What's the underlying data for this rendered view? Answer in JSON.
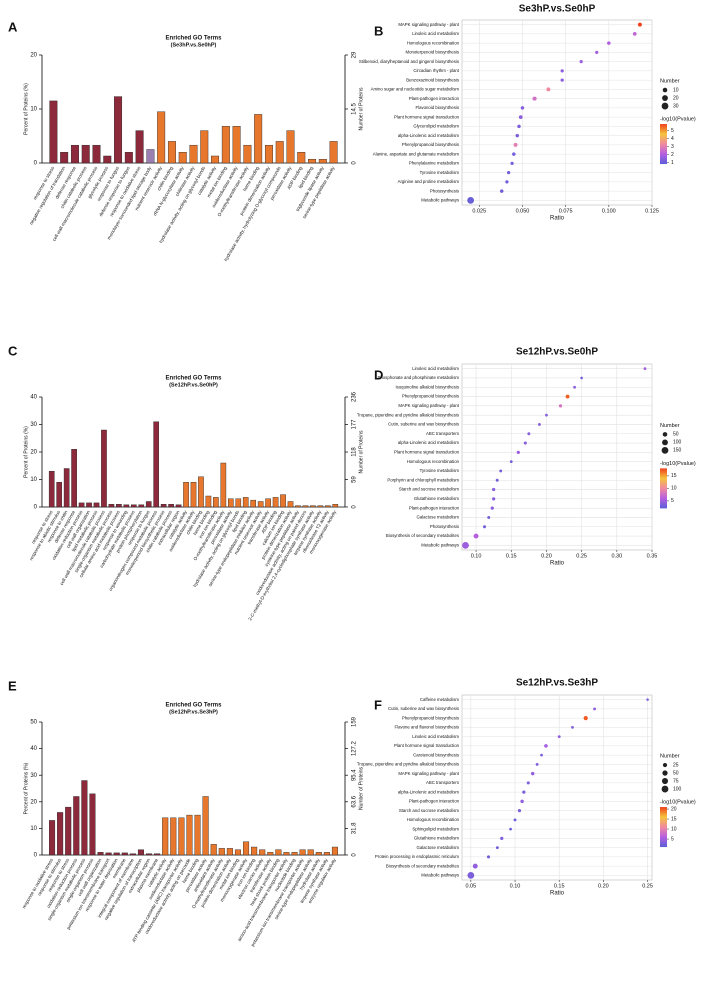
{
  "chart_data": [
    {
      "type": "bar",
      "panel": "A",
      "title": "Enriched GO Terms",
      "subtitle": "(Se3hP.vs.Se0hP)",
      "ylabel": "Percent of Proteins (%)",
      "y2label": "Number of Proteins",
      "categories": [
        "response to stress",
        "negative regulation of translation",
        "defense response",
        "chitin catabolic process",
        "cell wall macromolecule catabolic process",
        "glycolytic process",
        "response to fungus",
        "defense response to fungus",
        "response to oxidative stress",
        "monolayer-surrounded lipid storage body",
        "nutrient reservoir activity",
        "chitin binding",
        "rRNA N-glycosylase activity",
        "chitinase activity",
        "hydrolase activity, acting on glycosyl bonds",
        "catalytic activity",
        "metal ion binding",
        "oxidoreductase activity",
        "O-methyltransferase activity",
        "heme binding",
        "protein dimerization activity",
        "hydrolase activity, hydrolyzing O-glycosyl compounds",
        "peroxidase activity",
        "ADP binding",
        "lipid binding",
        "triglyceride lipase activity",
        "serine-type peptidase activity"
      ],
      "values": [
        11.5,
        2,
        3.3,
        3.3,
        3.3,
        1.3,
        12.3,
        2,
        6,
        2.5,
        9.5,
        4,
        2,
        3.3,
        6,
        1.3,
        6.8,
        6.8,
        3.3,
        9,
        3.3,
        4,
        6,
        2,
        0.7,
        0.7,
        4
      ],
      "colors": [
        "#8c2a3c",
        "#8c2a3c",
        "#8c2a3c",
        "#8c2a3c",
        "#8c2a3c",
        "#8c2a3c",
        "#8c2a3c",
        "#8c2a3c",
        "#8c2a3c",
        "#9b7fb3",
        "#e8772e",
        "#e8772e",
        "#e8772e",
        "#e8772e",
        "#e8772e",
        "#e8772e",
        "#e8772e",
        "#e8772e",
        "#e8772e",
        "#e8772e",
        "#e8772e",
        "#e8772e",
        "#e8772e",
        "#e8772e",
        "#e8772e",
        "#e8772e",
        "#e8772e"
      ],
      "ylim": [
        0,
        20
      ],
      "yticks": [
        0,
        10,
        20
      ],
      "y2lim": [
        0,
        29
      ],
      "y2ticks": [
        0,
        14.5,
        29
      ]
    },
    {
      "type": "dot",
      "panel": "B",
      "title": "Se3hP.vs.Se0hP",
      "xlabel": "Ratio",
      "size_title": "Number",
      "color_title": "-log10(Pvalue)",
      "categories": [
        "MAPK signaling pathway - plant",
        "Linoleic acid metabolism",
        "Homologous recombination",
        "Monoterpenoid biosynthesis",
        "Stilbenoid, diarylheptanoid and gingerol biosynthesis",
        "Circadian rhythm - plant",
        "Benzoxazinoid biosynthesis",
        "Amino sugar and nucleotide sugar metabolism",
        "Plant-pathogen interaction",
        "Flavonoid biosynthesis",
        "Plant hormone signal transduction",
        "Glycerolipid metabolism",
        "alpha-Linolenic acid metabolism",
        "Phenylpropanoid biosynthesis",
        "Alanine, aspartate and glutamate metabolism",
        "Phenylalanine metabolism",
        "Tyrosine metabolism",
        "Arginine and proline metabolism",
        "Photosynthesis",
        "Metabolic pathways"
      ],
      "values": [
        0.118,
        0.115,
        0.1,
        0.093,
        0.084,
        0.073,
        0.073,
        0.065,
        0.057,
        0.05,
        0.049,
        0.048,
        0.047,
        0.046,
        0.045,
        0.044,
        0.042,
        0.041,
        0.038,
        0.02
      ],
      "sizes": [
        6,
        5,
        4,
        3,
        3,
        3,
        3,
        6,
        7,
        4,
        5,
        4,
        4,
        6,
        4,
        3,
        3,
        3,
        4,
        30
      ],
      "pvalues": [
        5.8,
        2.3,
        2,
        1.8,
        1.7,
        1.5,
        1.5,
        3.3,
        2.6,
        1.4,
        1.5,
        1.3,
        1.3,
        3,
        1.2,
        1.2,
        1.1,
        1.1,
        1.1,
        1
      ],
      "xlim": [
        0.015,
        0.125
      ],
      "xticks": [
        {
          "value": 0.025,
          "label": "0.025"
        },
        {
          "value": 0.05,
          "label": "0.050"
        },
        {
          "value": 0.075,
          "label": "0.075"
        },
        {
          "value": 0.1,
          "label": "0.100"
        },
        {
          "value": 0.125,
          "label": "0.125"
        }
      ],
      "size_ticks": [
        10,
        20,
        30
      ],
      "clim": [
        0.8,
        5.8
      ],
      "cticks": [
        1,
        2,
        3,
        4,
        5
      ],
      "colorscale": [
        "#5a5fd8",
        "#b55fe0",
        "#f08aa0",
        "#f5c43c",
        "#f0401c"
      ]
    },
    {
      "type": "bar",
      "panel": "C",
      "title": "Enriched GO Terms",
      "subtitle": "(Se12hP.vs.Se0hP)",
      "ylabel": "Percent of Proteins (%)",
      "y2label": "Number of Proteins",
      "categories": [
        "response to stress",
        "response to abiotic stimulus",
        "response to chitin",
        "defense response",
        "oxidation-reduction process",
        "cell wall organization",
        "lipid metabolic process",
        "cell wall macromolecule catabolic process",
        "single-organism metabolic process",
        "cellular amino acid metabolic process",
        "response to wounding",
        "carbohydrate metabolic process",
        "protein phosphorylation",
        "response to fungus",
        "organonitrogen compound metabolic process",
        "monoterpenoid biosynthetic process",
        "chitin catabolic process",
        "extracellular region",
        "catalytic activity",
        "oxidoreductase activity",
        "chitin binding",
        "heme binding",
        "iron ion binding",
        "O-methyltransferase activity",
        "peroxidase activity",
        "hydrolase activity, acting on glycosyl bonds",
        "lipid binding",
        "serine-type endopeptidase inhibitor activity",
        "nutrient reservoir activity",
        "transferase activity",
        "ADP binding",
        "calcium ion binding",
        "protein dimerization activity",
        "cysteine-type peptidase activity",
        "oxidoreductase activity, acting on paired donors",
        "2-C-methyl-D-erythritol 2,4-cyclodiphosphate synthase activity",
        "terpene synthase activity",
        "ribonuclease T2 activity",
        "monooxygenase activity"
      ],
      "values": [
        13,
        9,
        14,
        21,
        1.5,
        1.5,
        1.5,
        28,
        1,
        1,
        0.8,
        0.8,
        0.8,
        2,
        31,
        1,
        1,
        0.8,
        9,
        9,
        11,
        4,
        3.5,
        16,
        3,
        3,
        3.5,
        2.5,
        2,
        3,
        3.5,
        4.5,
        2,
        0.5,
        0.5,
        0.5,
        0.5,
        0.5,
        1
      ],
      "colors": [
        "#8c2a3c",
        "#8c2a3c",
        "#8c2a3c",
        "#8c2a3c",
        "#8c2a3c",
        "#8c2a3c",
        "#8c2a3c",
        "#8c2a3c",
        "#8c2a3c",
        "#8c2a3c",
        "#8c2a3c",
        "#8c2a3c",
        "#8c2a3c",
        "#8c2a3c",
        "#8c2a3c",
        "#8c2a3c",
        "#8c2a3c",
        "#8c2a3c",
        "#e8772e",
        "#e8772e",
        "#e8772e",
        "#e8772e",
        "#e8772e",
        "#e8772e",
        "#e8772e",
        "#e8772e",
        "#e8772e",
        "#e8772e",
        "#e8772e",
        "#e8772e",
        "#e8772e",
        "#e8772e",
        "#e8772e",
        "#e8772e",
        "#e8772e",
        "#e8772e",
        "#e8772e",
        "#e8772e",
        "#e8772e"
      ],
      "ylim": [
        0,
        40
      ],
      "yticks": [
        0,
        10,
        20,
        30,
        40
      ],
      "y2lim": [
        0,
        236
      ],
      "y2ticks": [
        0,
        59,
        118,
        177,
        236
      ]
    },
    {
      "type": "dot",
      "panel": "D",
      "title": "Se12hP.vs.Se0hP",
      "xlabel": "Ratio",
      "size_title": "Number",
      "color_title": "-log10(Pvalue)",
      "categories": [
        "Linoleic acid metabolism",
        "Phosphonate and phosphinate metabolism",
        "Isoquinoline alkaloid biosynthesis",
        "Phenylpropanoid biosynthesis",
        "MAPK signaling pathway - plant",
        "Tropane, piperidine and pyridine alkaloid biosynthesis",
        "Cutin, suberine and wax biosynthesis",
        "ABC transporters",
        "alpha-Linolenic acid metabolism",
        "Plant hormone signal transduction",
        "Homologous recombination",
        "Tyrosine metabolism",
        "Porphyrin and chlorophyll metabolism",
        "Starch and sucrose metabolism",
        "Glutathione metabolism",
        "Plant-pathogen interaction",
        "Galactose metabolism",
        "Photosynthesis",
        "Biosynthesis of secondary metabolites",
        "Metabolic pathways"
      ],
      "values": [
        0.34,
        0.25,
        0.24,
        0.23,
        0.22,
        0.2,
        0.19,
        0.175,
        0.17,
        0.16,
        0.15,
        0.135,
        0.13,
        0.125,
        0.125,
        0.123,
        0.118,
        0.112,
        0.1,
        0.085
      ],
      "sizes": [
        8,
        5,
        8,
        30,
        15,
        8,
        8,
        10,
        12,
        15,
        8,
        8,
        10,
        15,
        15,
        15,
        10,
        12,
        60,
        150
      ],
      "pvalues": [
        5,
        3,
        4,
        17,
        8,
        4,
        4,
        4,
        4,
        5,
        3,
        3,
        3,
        4,
        4,
        4,
        3,
        3,
        6,
        5
      ],
      "xlim": [
        0.08,
        0.35
      ],
      "xticks": [
        {
          "value": 0.1,
          "label": "0.10"
        },
        {
          "value": 0.15,
          "label": "0.15"
        },
        {
          "value": 0.2,
          "label": "0.20"
        },
        {
          "value": 0.25,
          "label": "0.25"
        },
        {
          "value": 0.3,
          "label": "0.30"
        },
        {
          "value": 0.35,
          "label": "0.35"
        }
      ],
      "size_ticks": [
        50,
        100,
        150
      ],
      "clim": [
        2,
        18
      ],
      "cticks": [
        5,
        10,
        15
      ],
      "colorscale": [
        "#5a5fd8",
        "#b55fe0",
        "#f08aa0",
        "#f5c43c",
        "#f0401c"
      ]
    },
    {
      "type": "bar",
      "panel": "E",
      "title": "Enriched GO Terms",
      "subtitle": "(Se12hP.vs.Se3hP)",
      "ylabel": "Percent of Proteins (%)",
      "y2label": "Number of Proteins",
      "categories": [
        "response to oxidative stress",
        "response to stimulus",
        "response to stress",
        "oxidation-reduction process",
        "single-organism metabolic process",
        "single-organism process",
        "cell wall organization",
        "potassium ion transmembrane transport",
        "response to water deprivation",
        "membrane",
        "integral component of membrane",
        "negative regulation of transcription",
        "extracellular region",
        "plasma membrane",
        "catalytic activity",
        "oxidoreductase activity",
        "ATP-binding cassette (ABC) transporter activity",
        "oxidoreductase activity, acting on peroxide",
        "heme binding",
        "peroxidase activity",
        "antioxidant activity",
        "O-methyltransferase activity",
        "protein dimerization activity",
        "metal ion binding",
        "monooxygenase activity",
        "iron ion binding",
        "electron carrier activity",
        "transferase activity",
        "heat shock protein binding",
        "amino-acid transmembrane transporter activity",
        "nucleotide binding",
        "potassium ion transmembrane transporter activity",
        "serine-type endopeptidase activity",
        "hydrolase activity",
        "terpene synthase activity",
        "enzyme regulator activity"
      ],
      "values": [
        13,
        16,
        18,
        22,
        28,
        23,
        1,
        0.8,
        0.8,
        0.8,
        0.5,
        2,
        0.5,
        0.5,
        14,
        14,
        14,
        15,
        15,
        22,
        4,
        2.5,
        2.5,
        2,
        5,
        3,
        2,
        1,
        2,
        1,
        1,
        2,
        2,
        1,
        1,
        3
      ],
      "colors": [
        "#8c2a3c",
        "#8c2a3c",
        "#8c2a3c",
        "#8c2a3c",
        "#8c2a3c",
        "#8c2a3c",
        "#8c2a3c",
        "#8c2a3c",
        "#8c2a3c",
        "#8c2a3c",
        "#8c2a3c",
        "#8c2a3c",
        "#8c2a3c",
        "#8c2a3c",
        "#e8772e",
        "#e8772e",
        "#e8772e",
        "#e8772e",
        "#e8772e",
        "#e8772e",
        "#e8772e",
        "#e8772e",
        "#e8772e",
        "#e8772e",
        "#e8772e",
        "#e8772e",
        "#e8772e",
        "#e8772e",
        "#e8772e",
        "#e8772e",
        "#e8772e",
        "#e8772e",
        "#e8772e",
        "#e8772e",
        "#e8772e",
        "#e8772e"
      ],
      "ylim": [
        0,
        50
      ],
      "yticks": [
        0,
        10,
        20,
        30,
        40,
        50
      ],
      "y2lim": [
        0,
        159
      ],
      "y2ticks": [
        0,
        31.8,
        63.6,
        95.4,
        127.2,
        159
      ]
    },
    {
      "type": "dot",
      "panel": "F",
      "title": "Se12hP.vs.Se3hP",
      "xlabel": "Ratio",
      "size_title": "Number",
      "color_title": "-log10(Pvalue)",
      "categories": [
        "Caffeine metabolism",
        "Cutin, suberine and wax biosynthesis",
        "Phenylpropanoid biosynthesis",
        "Flavone and flavonol biosynthesis",
        "Linoleic acid metabolism",
        "Plant hormone signal transduction",
        "Carotenoid biosynthesis",
        "Tropane, piperidine and pyridine alkaloid biosynthesis",
        "MAPK signaling pathway - plant",
        "ABC transporters",
        "alpha-Linolenic acid metabolism",
        "Plant-pathogen interaction",
        "Starch and sucrose metabolism",
        "Homologous recombination",
        "Sphingolipid metabolism",
        "Glutathione metabolism",
        "Galactose metabolism",
        "Protein processing in endoplasmic reticulum",
        "Biosynthesis of secondary metabolites",
        "Metabolic pathways"
      ],
      "values": [
        0.25,
        0.19,
        0.18,
        0.165,
        0.15,
        0.135,
        0.13,
        0.125,
        0.12,
        0.115,
        0.11,
        0.108,
        0.105,
        0.1,
        0.095,
        0.085,
        0.08,
        0.07,
        0.055,
        0.05
      ],
      "sizes": [
        3,
        6,
        25,
        5,
        6,
        15,
        5,
        6,
        12,
        8,
        10,
        12,
        10,
        6,
        5,
        10,
        6,
        8,
        40,
        100
      ],
      "pvalues": [
        3,
        4,
        20,
        3,
        4,
        5,
        3,
        3,
        4,
        3,
        3,
        4,
        3,
        2,
        2,
        3,
        2,
        2,
        4,
        3
      ],
      "xlim": [
        0.04,
        0.255
      ],
      "xticks": [
        {
          "value": 0.05,
          "label": "0.05"
        },
        {
          "value": 0.1,
          "label": "0.10"
        },
        {
          "value": 0.15,
          "label": "0.15"
        },
        {
          "value": 0.2,
          "label": "0.20"
        },
        {
          "value": 0.25,
          "label": "0.25"
        }
      ],
      "size_ticks": [
        25,
        50,
        75,
        100
      ],
      "clim": [
        1,
        21
      ],
      "cticks": [
        5,
        10,
        15,
        20
      ],
      "colorscale": [
        "#5a5fd8",
        "#b55fe0",
        "#f08aa0",
        "#f5c43c",
        "#f0401c"
      ]
    }
  ]
}
